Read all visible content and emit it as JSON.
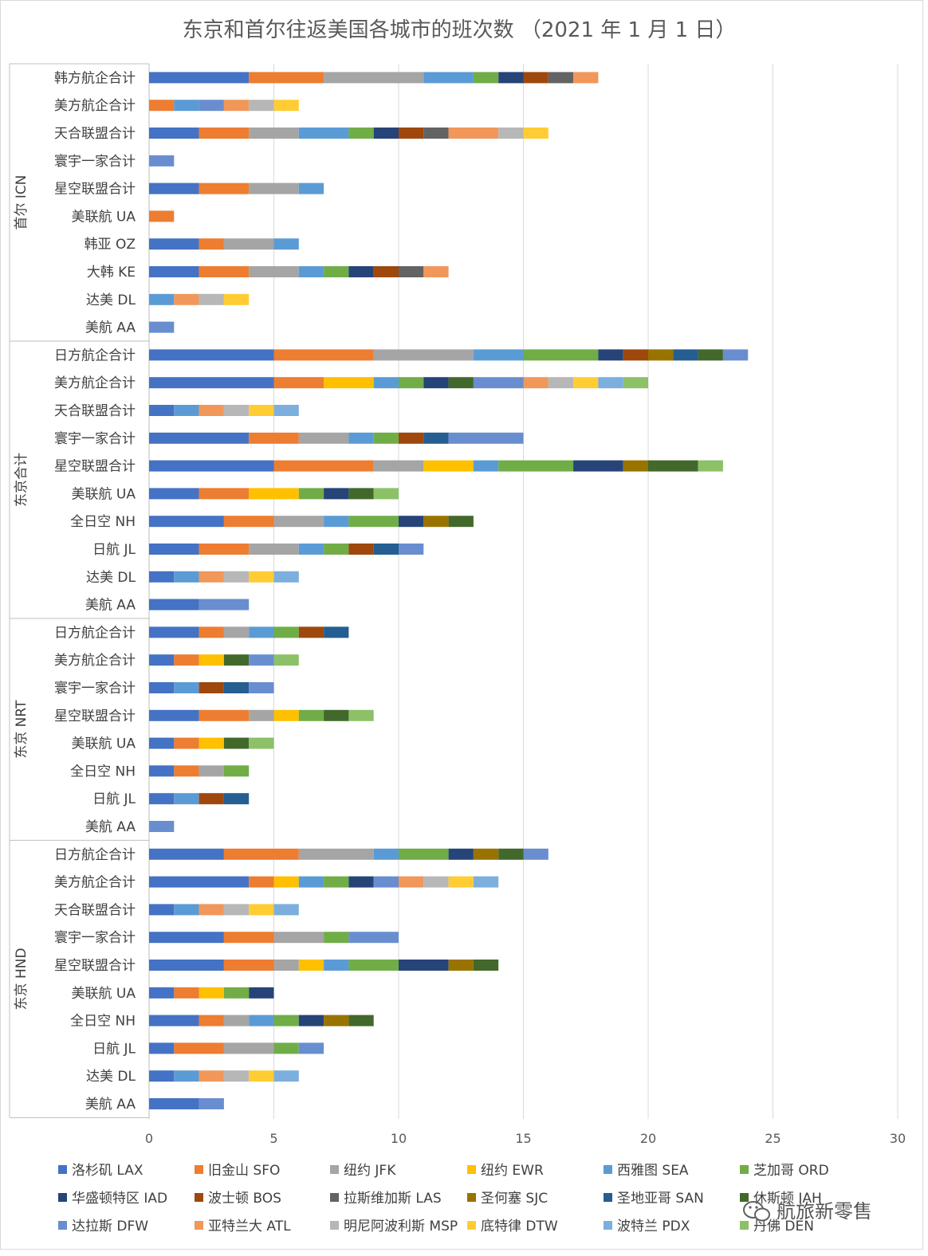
{
  "chart_data": {
    "type": "bar",
    "orientation": "horizontal",
    "stacked": true,
    "title": "东京和首尔往返美国各城市的班次数 （2021 年 1 月 1 日）",
    "xlim": [
      0,
      30
    ],
    "xticks": [
      "0",
      "5",
      "10",
      "15",
      "20",
      "25",
      "30"
    ],
    "grid": true,
    "legend_position": "bottom",
    "watermark": "航旅新零售",
    "series": [
      {
        "name": "洛杉矶 LAX",
        "color": "#4472C4"
      },
      {
        "name": "旧金山 SFO",
        "color": "#ED7D31"
      },
      {
        "name": "纽约 JFK",
        "color": "#A5A5A5"
      },
      {
        "name": "纽约 EWR",
        "color": "#FFC000"
      },
      {
        "name": "西雅图 SEA",
        "color": "#5B9BD5"
      },
      {
        "name": "芝加哥 ORD",
        "color": "#70AD47"
      },
      {
        "name": "华盛顿特区 IAD",
        "color": "#264478"
      },
      {
        "name": "波士顿 BOS",
        "color": "#9E480E"
      },
      {
        "name": "拉斯维加斯 LAS",
        "color": "#636363"
      },
      {
        "name": "圣何塞 SJC",
        "color": "#997300"
      },
      {
        "name": "圣地亚哥 SAN",
        "color": "#255E91"
      },
      {
        "name": "休斯顿 IAH",
        "color": "#43682B"
      },
      {
        "name": "达拉斯 DFW",
        "color": "#698ED0"
      },
      {
        "name": "亚特兰大 ATL",
        "color": "#F1975A"
      },
      {
        "name": "明尼阿波利斯 MSP",
        "color": "#B7B7B7"
      },
      {
        "name": "底特律 DTW",
        "color": "#FFCD33"
      },
      {
        "name": "波特兰 PDX",
        "color": "#7CAFDD"
      },
      {
        "name": "丹佛 DEN",
        "color": "#8CC168"
      }
    ],
    "groups": [
      {
        "name": "首尔 ICN",
        "rows": [
          {
            "label": "韩方航企合计",
            "values": [
              4,
              3,
              4,
              0,
              2,
              1,
              1,
              1,
              1,
              0,
              0,
              0,
              0,
              1,
              0,
              0,
              0,
              0
            ]
          },
          {
            "label": "美方航企合计",
            "values": [
              0,
              1,
              0,
              0,
              1,
              0,
              0,
              0,
              0,
              0,
              0,
              0,
              1,
              1,
              1,
              1,
              0,
              0
            ]
          },
          {
            "label": "天合联盟合计",
            "values": [
              2,
              2,
              2,
              0,
              2,
              1,
              1,
              1,
              1,
              0,
              0,
              0,
              0,
              2,
              1,
              1,
              0,
              0
            ]
          },
          {
            "label": "寰宇一家合计",
            "values": [
              0,
              0,
              0,
              0,
              0,
              0,
              0,
              0,
              0,
              0,
              0,
              0,
              1,
              0,
              0,
              0,
              0,
              0
            ]
          },
          {
            "label": "星空联盟合计",
            "values": [
              2,
              2,
              2,
              0,
              1,
              0,
              0,
              0,
              0,
              0,
              0,
              0,
              0,
              0,
              0,
              0,
              0,
              0
            ]
          },
          {
            "label": "美联航 UA",
            "values": [
              0,
              1,
              0,
              0,
              0,
              0,
              0,
              0,
              0,
              0,
              0,
              0,
              0,
              0,
              0,
              0,
              0,
              0
            ]
          },
          {
            "label": "韩亚 OZ",
            "values": [
              2,
              1,
              2,
              0,
              1,
              0,
              0,
              0,
              0,
              0,
              0,
              0,
              0,
              0,
              0,
              0,
              0,
              0
            ]
          },
          {
            "label": "大韩 KE",
            "values": [
              2,
              2,
              2,
              0,
              1,
              1,
              1,
              1,
              1,
              0,
              0,
              0,
              0,
              1,
              0,
              0,
              0,
              0
            ]
          },
          {
            "label": "达美 DL",
            "values": [
              0,
              0,
              0,
              0,
              1,
              0,
              0,
              0,
              0,
              0,
              0,
              0,
              0,
              1,
              1,
              1,
              0,
              0
            ]
          },
          {
            "label": "美航 AA",
            "values": [
              0,
              0,
              0,
              0,
              0,
              0,
              0,
              0,
              0,
              0,
              0,
              0,
              1,
              0,
              0,
              0,
              0,
              0
            ]
          }
        ]
      },
      {
        "name": "东京合计",
        "rows": [
          {
            "label": "日方航企合计",
            "values": [
              5,
              4,
              4,
              0,
              2,
              3,
              1,
              1,
              0,
              1,
              1,
              1,
              1,
              0,
              0,
              0,
              0,
              0
            ]
          },
          {
            "label": "美方航企合计",
            "values": [
              5,
              2,
              0,
              2,
              1,
              1,
              1,
              0,
              0,
              0,
              0,
              1,
              2,
              1,
              1,
              1,
              1,
              1
            ]
          },
          {
            "label": "天合联盟合计",
            "values": [
              1,
              0,
              0,
              0,
              1,
              0,
              0,
              0,
              0,
              0,
              0,
              0,
              0,
              1,
              1,
              1,
              1,
              0
            ]
          },
          {
            "label": "寰宇一家合计",
            "values": [
              4,
              2,
              2,
              0,
              1,
              1,
              0,
              1,
              0,
              0,
              1,
              0,
              3,
              0,
              0,
              0,
              0,
              0
            ]
          },
          {
            "label": "星空联盟合计",
            "values": [
              5,
              4,
              2,
              2,
              1,
              3,
              2,
              0,
              0,
              1,
              0,
              2,
              0,
              0,
              0,
              0,
              0,
              1
            ]
          },
          {
            "label": "美联航 UA",
            "values": [
              2,
              2,
              0,
              2,
              0,
              1,
              1,
              0,
              0,
              0,
              0,
              1,
              0,
              0,
              0,
              0,
              0,
              1
            ]
          },
          {
            "label": "全日空 NH",
            "values": [
              3,
              2,
              2,
              0,
              1,
              2,
              1,
              0,
              0,
              1,
              0,
              1,
              0,
              0,
              0,
              0,
              0,
              0
            ]
          },
          {
            "label": "日航 JL",
            "values": [
              2,
              2,
              2,
              0,
              1,
              1,
              0,
              1,
              0,
              0,
              1,
              0,
              1,
              0,
              0,
              0,
              0,
              0
            ]
          },
          {
            "label": "达美 DL",
            "values": [
              1,
              0,
              0,
              0,
              1,
              0,
              0,
              0,
              0,
              0,
              0,
              0,
              0,
              1,
              1,
              1,
              1,
              0
            ]
          },
          {
            "label": "美航 AA",
            "values": [
              2,
              0,
              0,
              0,
              0,
              0,
              0,
              0,
              0,
              0,
              0,
              0,
              2,
              0,
              0,
              0,
              0,
              0
            ]
          }
        ]
      },
      {
        "name": "东京 NRT",
        "rows": [
          {
            "label": "日方航企合计",
            "values": [
              2,
              1,
              1,
              0,
              1,
              1,
              0,
              1,
              0,
              0,
              1,
              0,
              0,
              0,
              0,
              0,
              0,
              0
            ]
          },
          {
            "label": "美方航企合计",
            "values": [
              1,
              1,
              0,
              1,
              0,
              0,
              0,
              0,
              0,
              0,
              0,
              1,
              1,
              0,
              0,
              0,
              0,
              1
            ]
          },
          {
            "label": "寰宇一家合计",
            "values": [
              1,
              0,
              0,
              0,
              1,
              0,
              0,
              1,
              0,
              0,
              1,
              0,
              1,
              0,
              0,
              0,
              0,
              0
            ]
          },
          {
            "label": "星空联盟合计",
            "values": [
              2,
              2,
              1,
              1,
              0,
              1,
              0,
              0,
              0,
              0,
              0,
              1,
              0,
              0,
              0,
              0,
              0,
              1
            ]
          },
          {
            "label": "美联航 UA",
            "values": [
              1,
              1,
              0,
              1,
              0,
              0,
              0,
              0,
              0,
              0,
              0,
              1,
              0,
              0,
              0,
              0,
              0,
              1
            ]
          },
          {
            "label": "全日空 NH",
            "values": [
              1,
              1,
              1,
              0,
              0,
              1,
              0,
              0,
              0,
              0,
              0,
              0,
              0,
              0,
              0,
              0,
              0,
              0
            ]
          },
          {
            "label": "日航 JL",
            "values": [
              1,
              0,
              0,
              0,
              1,
              0,
              0,
              1,
              0,
              0,
              1,
              0,
              0,
              0,
              0,
              0,
              0,
              0
            ]
          },
          {
            "label": "美航 AA",
            "values": [
              0,
              0,
              0,
              0,
              0,
              0,
              0,
              0,
              0,
              0,
              0,
              0,
              1,
              0,
              0,
              0,
              0,
              0
            ]
          }
        ]
      },
      {
        "name": "东京 HND",
        "rows": [
          {
            "label": "日方航企合计",
            "values": [
              3,
              3,
              3,
              0,
              1,
              2,
              1,
              0,
              0,
              1,
              0,
              1,
              1,
              0,
              0,
              0,
              0,
              0
            ]
          },
          {
            "label": "美方航企合计",
            "values": [
              4,
              1,
              0,
              1,
              1,
              1,
              1,
              0,
              0,
              0,
              0,
              0,
              1,
              1,
              1,
              1,
              1,
              0
            ]
          },
          {
            "label": "天合联盟合计",
            "values": [
              1,
              0,
              0,
              0,
              1,
              0,
              0,
              0,
              0,
              0,
              0,
              0,
              0,
              1,
              1,
              1,
              1,
              0
            ]
          },
          {
            "label": "寰宇一家合计",
            "values": [
              3,
              2,
              2,
              0,
              0,
              1,
              0,
              0,
              0,
              0,
              0,
              0,
              2,
              0,
              0,
              0,
              0,
              0
            ]
          },
          {
            "label": "星空联盟合计",
            "values": [
              3,
              2,
              1,
              1,
              1,
              2,
              2,
              0,
              0,
              1,
              0,
              1,
              0,
              0,
              0,
              0,
              0,
              0
            ]
          },
          {
            "label": "美联航 UA",
            "values": [
              1,
              1,
              0,
              1,
              0,
              1,
              1,
              0,
              0,
              0,
              0,
              0,
              0,
              0,
              0,
              0,
              0,
              0
            ]
          },
          {
            "label": "全日空 NH",
            "values": [
              2,
              1,
              1,
              0,
              1,
              1,
              1,
              0,
              0,
              1,
              0,
              1,
              0,
              0,
              0,
              0,
              0,
              0
            ]
          },
          {
            "label": "日航 JL",
            "values": [
              1,
              2,
              2,
              0,
              0,
              1,
              0,
              0,
              0,
              0,
              0,
              0,
              1,
              0,
              0,
              0,
              0,
              0
            ]
          },
          {
            "label": "达美 DL",
            "values": [
              1,
              0,
              0,
              0,
              1,
              0,
              0,
              0,
              0,
              0,
              0,
              0,
              0,
              1,
              1,
              1,
              1,
              0
            ]
          },
          {
            "label": "美航 AA",
            "values": [
              2,
              0,
              0,
              0,
              0,
              0,
              0,
              0,
              0,
              0,
              0,
              0,
              1,
              0,
              0,
              0,
              0,
              0
            ]
          }
        ]
      }
    ]
  }
}
